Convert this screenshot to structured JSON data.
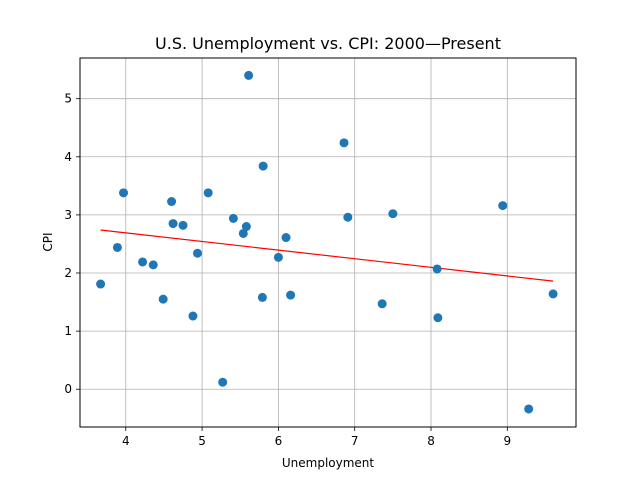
{
  "chart_data": {
    "type": "scatter",
    "title": "U.S. Unemployment vs. CPI: 2000—Present",
    "xlabel": "Unemployment",
    "ylabel": "CPI",
    "xlim": [
      3.4,
      9.9
    ],
    "ylim": [
      -0.65,
      5.7
    ],
    "xticks": [
      4,
      5,
      6,
      7,
      8,
      9
    ],
    "yticks": [
      0,
      1,
      2,
      3,
      4,
      5
    ],
    "grid": true,
    "point_color": "#1f77b4",
    "trend_color": "#ff0000",
    "points": [
      {
        "x": 3.67,
        "y": 1.81
      },
      {
        "x": 3.89,
        "y": 2.44
      },
      {
        "x": 3.97,
        "y": 3.38
      },
      {
        "x": 4.22,
        "y": 2.19
      },
      {
        "x": 4.36,
        "y": 2.14
      },
      {
        "x": 4.49,
        "y": 1.55
      },
      {
        "x": 4.6,
        "y": 3.23
      },
      {
        "x": 4.62,
        "y": 2.85
      },
      {
        "x": 4.75,
        "y": 2.82
      },
      {
        "x": 4.88,
        "y": 1.26
      },
      {
        "x": 4.94,
        "y": 2.34
      },
      {
        "x": 5.08,
        "y": 3.38
      },
      {
        "x": 5.27,
        "y": 0.12
      },
      {
        "x": 5.41,
        "y": 2.94
      },
      {
        "x": 5.54,
        "y": 2.68
      },
      {
        "x": 5.58,
        "y": 2.8
      },
      {
        "x": 5.61,
        "y": 5.4
      },
      {
        "x": 5.79,
        "y": 1.58
      },
      {
        "x": 5.8,
        "y": 3.84
      },
      {
        "x": 6.0,
        "y": 2.27
      },
      {
        "x": 6.1,
        "y": 2.61
      },
      {
        "x": 6.16,
        "y": 1.62
      },
      {
        "x": 6.86,
        "y": 4.24
      },
      {
        "x": 6.91,
        "y": 2.96
      },
      {
        "x": 7.36,
        "y": 1.47
      },
      {
        "x": 7.5,
        "y": 3.02
      },
      {
        "x": 8.08,
        "y": 2.07
      },
      {
        "x": 8.09,
        "y": 1.23
      },
      {
        "x": 8.94,
        "y": 3.16
      },
      {
        "x": 9.28,
        "y": -0.34
      },
      {
        "x": 9.6,
        "y": 1.64
      }
    ],
    "trendline": {
      "x1": 3.67,
      "y1": 2.74,
      "x2": 9.6,
      "y2": 1.86
    }
  }
}
